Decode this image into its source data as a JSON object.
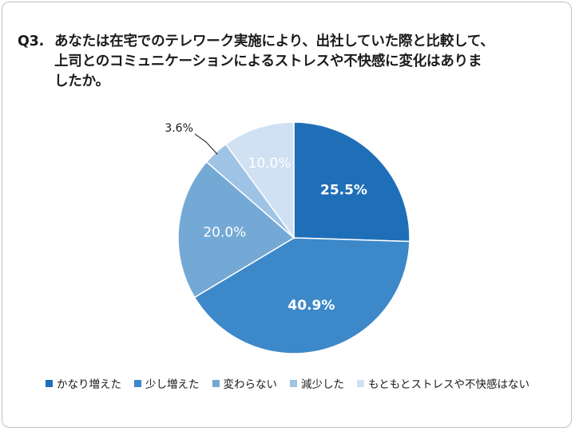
{
  "title": {
    "prefix": "Q3.",
    "line1": "あなたは在宅でのテレワーク実施により、出社していた際と比較して、",
    "line2": "上司とのコミュニケーションによるストレスや不快感に変化はありま",
    "line3": "したか。"
  },
  "colors": {
    "kanari": "#1f6fb8",
    "sukoshi": "#3c88c9",
    "kawaranai": "#74a9d6",
    "genshou": "#9fc3e4",
    "motomoto": "#cfe1f2",
    "label_dark": "#ffffff",
    "label_outside": "#1a1a1a"
  },
  "chart_data": {
    "type": "pie",
    "title": "Q3. あなたは在宅でのテレワーク実施により、出社していた際と比較して、上司とのコミュニケーションによるストレスや不快感に変化はありましたか。",
    "categories": [
      "かなり増えた",
      "少し増えた",
      "変わらない",
      "減少した",
      "もともとストレスや不快感はない"
    ],
    "values": [
      25.5,
      40.9,
      20.0,
      3.6,
      10.0
    ],
    "labels": [
      "25.5%",
      "40.9%",
      "20.0%",
      "3.6%",
      "10.0%"
    ],
    "start_angle_deg": 0,
    "direction": "clockwise",
    "legend_position": "bottom"
  }
}
